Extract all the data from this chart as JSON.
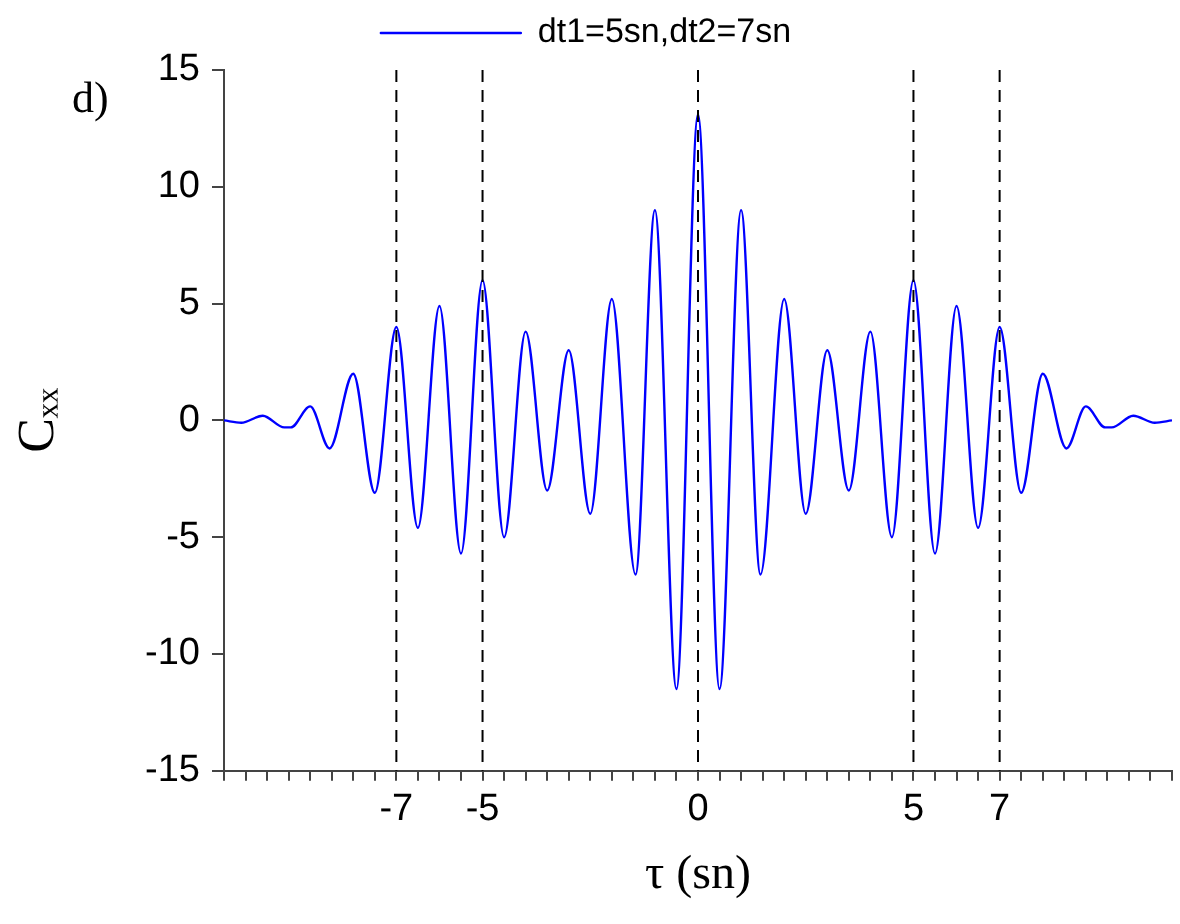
{
  "chart_data": {
    "type": "line",
    "xlabel": "τ (sn)",
    "ylabel": "Cₓₓ",
    "annotations": [
      "d)"
    ],
    "legend": "top",
    "grid": false,
    "marker": "none",
    "line_style": "solid",
    "xlim": [
      -11,
      11
    ],
    "ylim": [
      -15,
      15
    ],
    "xticks": [
      {
        "value": -11,
        "label": null
      },
      {
        "value": -10.5,
        "label": null
      },
      {
        "value": -10,
        "label": null
      },
      {
        "value": -9.5,
        "label": null
      },
      {
        "value": -9,
        "label": null
      },
      {
        "value": -8.5,
        "label": null
      },
      {
        "value": -8,
        "label": null
      },
      {
        "value": -7.5,
        "label": null
      },
      -7,
      {
        "value": -6.5,
        "label": null
      },
      {
        "value": -6,
        "label": null
      },
      {
        "value": -5.5,
        "label": null
      },
      -5,
      {
        "value": -4.5,
        "label": null
      },
      {
        "value": -4,
        "label": null
      },
      {
        "value": -3.5,
        "label": null
      },
      {
        "value": -3,
        "label": null
      },
      {
        "value": -2.5,
        "label": null
      },
      {
        "value": -2,
        "label": null
      },
      {
        "value": -1.5,
        "label": null
      },
      {
        "value": -1,
        "label": null
      },
      {
        "value": -0.5,
        "label": null
      },
      0,
      {
        "value": 0.5,
        "label": null
      },
      {
        "value": 1,
        "label": null
      },
      {
        "value": 1.5,
        "label": null
      },
      {
        "value": 2,
        "label": null
      },
      {
        "value": 2.5,
        "label": null
      },
      {
        "value": 3,
        "label": null
      },
      {
        "value": 3.5,
        "label": null
      },
      {
        "value": 4,
        "label": null
      },
      {
        "value": 4.5,
        "label": null
      },
      5,
      {
        "value": 5.5,
        "label": null
      },
      {
        "value": 6,
        "label": null
      },
      {
        "value": 6.5,
        "label": null
      },
      7,
      {
        "value": 7.5,
        "label": null
      },
      {
        "value": 8,
        "label": null
      },
      {
        "value": 8.5,
        "label": null
      },
      {
        "value": 9,
        "label": null
      },
      {
        "value": 9.5,
        "label": null
      },
      {
        "value": 10,
        "label": null
      },
      {
        "value": 10.5,
        "label": null
      },
      {
        "value": 11,
        "label": null
      }
    ],
    "yticks": [
      -15,
      -10,
      -5,
      0,
      5,
      10,
      15
    ],
    "x": [
      -11,
      -10.6,
      -10.1,
      -9.6,
      -9.45,
      -9,
      -8.55,
      -8,
      -7.5,
      -7,
      -6.5,
      -6,
      -5.5,
      -5,
      -4.5,
      -4,
      -3.5,
      -3,
      -2.5,
      -2,
      -1.45,
      -1,
      -0.5,
      0,
      0.5,
      1,
      1.45,
      2,
      2.5,
      3,
      3.5,
      4,
      4.5,
      5,
      5.5,
      6,
      6.5,
      7,
      7.5,
      8,
      8.55,
      9,
      9.45,
      9.6,
      10.1,
      10.6,
      11
    ],
    "series": [
      {
        "name": "dt1=5sn,dt2=7sn",
        "color": "#0000ff",
        "values": [
          0,
          -0.1,
          0.2,
          -0.3,
          -0.3,
          0.6,
          -1.2,
          2,
          -3.1,
          4,
          -4.6,
          4.9,
          -5.7,
          6,
          -5,
          3.8,
          -3,
          3,
          -4,
          5.2,
          -6.6,
          9,
          -11.5,
          13.1,
          -11.5,
          9,
          -6.6,
          5.2,
          -4,
          3,
          -3,
          3.8,
          -5,
          6,
          -5.7,
          4.9,
          -4.6,
          4,
          -3.1,
          2,
          -1.2,
          0.6,
          -0.3,
          -0.3,
          0.2,
          -0.1,
          0
        ]
      }
    ],
    "ref_lines": [
      {
        "axis": "x",
        "value": -7,
        "color": "#000000",
        "line_style": "dashed"
      },
      {
        "axis": "x",
        "value": -5,
        "color": "#000000",
        "line_style": "dashed"
      },
      {
        "axis": "x",
        "value": 0,
        "color": "#000000",
        "line_style": "dashed"
      },
      {
        "axis": "x",
        "value": 5,
        "color": "#000000",
        "line_style": "dashed"
      },
      {
        "axis": "x",
        "value": 7,
        "color": "#000000",
        "line_style": "dashed"
      }
    ]
  }
}
